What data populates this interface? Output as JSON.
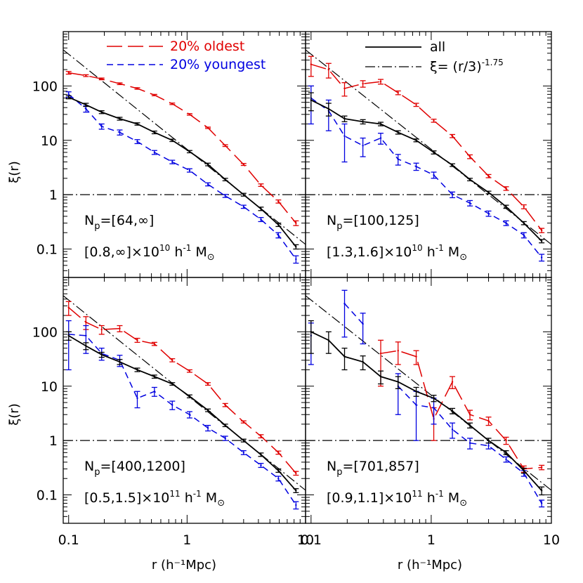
{
  "figure": {
    "ylabel": "ξ(r)",
    "xlabel": "r (h⁻¹Mpc)",
    "x_tick_labels_left": [
      "0.1",
      "1",
      "10"
    ],
    "x_tick_labels_right": [
      "0.1",
      "1",
      "10"
    ],
    "y_tick_labels": [
      "100",
      "10",
      "1",
      "0.1"
    ],
    "legend_left": [
      {
        "label": "20% oldest",
        "color": "#e00000",
        "style": "long-dash"
      },
      {
        "label": "20% youngest",
        "color": "#0000e0",
        "style": "short-dash"
      }
    ],
    "legend_right": [
      {
        "label": "all",
        "color": "#000000",
        "style": "solid"
      },
      {
        "label_prefix": "ξ=  (r/3)",
        "label_exponent": "-1.75",
        "color": "#000000",
        "style": "dash-dot"
      }
    ],
    "colors": {
      "oldest": "#e00000",
      "youngest": "#0000e0",
      "all": "#000000"
    }
  },
  "chart_data": [
    {
      "type": "line",
      "panel": "top-left",
      "annotation_np": "N",
      "annotation_np_sub": "p",
      "annotation_np_val": "=[64,∞]",
      "annotation_mass": "[0.8,∞]×10",
      "annotation_mass_exp": "10",
      "annotation_mass_unit": " h",
      "annotation_mass_unit_exp": "-1",
      "annotation_mass_unit2": " M",
      "annotation_mass_sub": "⊙",
      "xlim": [
        0.09,
        10
      ],
      "ylim": [
        0.03,
        1000
      ],
      "xscale": "log",
      "yscale": "log",
      "series": [
        {
          "key": "oldest",
          "x": [
            0.1,
            0.14,
            0.19,
            0.27,
            0.38,
            0.53,
            0.75,
            1.05,
            1.5,
            2.1,
            3.0,
            4.2,
            5.9,
            8.3
          ],
          "y": [
            175,
            155,
            135,
            110,
            90,
            68,
            47,
            30,
            17,
            8,
            3.6,
            1.5,
            0.75,
            0.3
          ],
          "err": [
            10,
            6,
            5,
            4,
            3,
            2,
            1.5,
            1,
            0.5,
            0.3,
            0.15,
            0.08,
            0.05,
            0.03
          ]
        },
        {
          "key": "youngest",
          "x": [
            0.1,
            0.14,
            0.19,
            0.27,
            0.38,
            0.53,
            0.75,
            1.05,
            1.5,
            2.1,
            3.0,
            4.2,
            5.9,
            8.3
          ],
          "y": [
            70,
            38,
            18,
            14,
            9.5,
            6,
            4,
            2.8,
            1.55,
            0.95,
            0.6,
            0.35,
            0.18,
            0.065
          ],
          "err": [
            8,
            5,
            2,
            1.5,
            0.8,
            0.5,
            0.3,
            0.2,
            0.1,
            0.06,
            0.04,
            0.03,
            0.02,
            0.01
          ]
        },
        {
          "key": "all",
          "x": [
            0.1,
            0.14,
            0.19,
            0.27,
            0.38,
            0.53,
            0.75,
            1.05,
            1.5,
            2.1,
            3.0,
            4.2,
            5.9,
            8.3
          ],
          "y": [
            62,
            45,
            33,
            25,
            20,
            14,
            10,
            6.2,
            3.6,
            1.9,
            1.0,
            0.55,
            0.28,
            0.11
          ],
          "err": [
            4,
            3,
            2,
            1.5,
            1,
            0.8,
            0.5,
            0.3,
            0.2,
            0.1,
            0.06,
            0.04,
            0.02,
            0.01
          ]
        }
      ]
    },
    {
      "type": "line",
      "panel": "top-right",
      "annotation_np": "N",
      "annotation_np_sub": "p",
      "annotation_np_val": "=[100,125]",
      "annotation_mass": "[1.3,1.6]×10",
      "annotation_mass_exp": "10",
      "annotation_mass_unit": " h",
      "annotation_mass_unit_exp": "-1",
      "annotation_mass_unit2": " M",
      "annotation_mass_sub": "⊙",
      "xlim": [
        0.09,
        10
      ],
      "ylim": [
        0.03,
        1000
      ],
      "xscale": "log",
      "yscale": "log",
      "series": [
        {
          "key": "oldest",
          "x": [
            0.1,
            0.14,
            0.19,
            0.27,
            0.38,
            0.53,
            0.75,
            1.05,
            1.5,
            2.1,
            3.0,
            4.2,
            5.9,
            8.3
          ],
          "y": [
            250,
            200,
            90,
            110,
            120,
            75,
            45,
            23,
            12,
            5,
            2.2,
            1.3,
            0.6,
            0.22
          ],
          "err": [
            100,
            60,
            25,
            15,
            12,
            6,
            3,
            1.5,
            0.8,
            0.4,
            0.15,
            0.1,
            0.05,
            0.02
          ]
        },
        {
          "key": "youngest",
          "x": [
            0.1,
            0.14,
            0.19,
            0.27,
            0.38,
            0.53,
            0.75,
            1.05,
            1.5,
            2.1,
            3.0,
            4.2,
            5.9,
            8.3
          ],
          "y": [
            60,
            35,
            12,
            8,
            11,
            4.5,
            3.3,
            2.3,
            1.0,
            0.7,
            0.45,
            0.3,
            0.18,
            0.07
          ],
          "err": [
            40,
            20,
            8,
            3,
            2.5,
            1,
            0.5,
            0.3,
            0.12,
            0.08,
            0.05,
            0.03,
            0.02,
            0.01
          ]
        },
        {
          "key": "all",
          "x": [
            0.1,
            0.14,
            0.19,
            0.27,
            0.38,
            0.53,
            0.75,
            1.05,
            1.5,
            2.1,
            3.0,
            4.2,
            5.9,
            8.3
          ],
          "y": [
            55,
            38,
            25,
            22,
            20,
            14,
            10,
            6,
            3.5,
            1.9,
            1.1,
            0.6,
            0.3,
            0.14
          ],
          "err": [
            20,
            10,
            3,
            2,
            1.5,
            1,
            0.6,
            0.4,
            0.2,
            0.1,
            0.06,
            0.04,
            0.02,
            0.01
          ]
        }
      ]
    },
    {
      "type": "line",
      "panel": "bottom-left",
      "annotation_np": "N",
      "annotation_np_sub": "p",
      "annotation_np_val": "=[400,1200]",
      "annotation_mass": "[0.5,1.5]×10",
      "annotation_mass_exp": "11",
      "annotation_mass_unit": " h",
      "annotation_mass_unit_exp": "-1",
      "annotation_mass_unit2": " M",
      "annotation_mass_sub": "⊙",
      "xlim": [
        0.09,
        10
      ],
      "ylim": [
        0.03,
        1000
      ],
      "xscale": "log",
      "yscale": "log",
      "series": [
        {
          "key": "oldest",
          "x": [
            0.1,
            0.14,
            0.19,
            0.27,
            0.38,
            0.53,
            0.75,
            1.05,
            1.5,
            2.1,
            3.0,
            4.2,
            5.9,
            8.3
          ],
          "y": [
            280,
            150,
            110,
            115,
            70,
            60,
            30,
            19,
            11,
            4.5,
            2.2,
            1.2,
            0.6,
            0.25
          ],
          "err": [
            80,
            40,
            20,
            15,
            6,
            4,
            2,
            1,
            0.6,
            0.3,
            0.1,
            0.08,
            0.04,
            0.02
          ]
        },
        {
          "key": "youngest",
          "x": [
            0.1,
            0.14,
            0.19,
            0.27,
            0.38,
            0.53,
            0.75,
            1.05,
            1.5,
            2.1,
            3.0,
            4.2,
            5.9,
            8.3
          ],
          "y": [
            90,
            85,
            40,
            30,
            6,
            8,
            4.5,
            3,
            1.7,
            1.1,
            0.6,
            0.35,
            0.2,
            0.065
          ],
          "err": [
            70,
            45,
            10,
            7,
            2,
            1.5,
            0.8,
            0.4,
            0.2,
            0.1,
            0.05,
            0.03,
            0.02,
            0.01
          ]
        },
        {
          "key": "all",
          "x": [
            0.1,
            0.14,
            0.19,
            0.27,
            0.38,
            0.53,
            0.75,
            1.05,
            1.5,
            2.1,
            3.0,
            4.2,
            5.9,
            8.3
          ],
          "y": [
            85,
            55,
            38,
            28,
            20,
            15,
            11,
            6.5,
            3.6,
            1.9,
            1.0,
            0.55,
            0.28,
            0.12
          ],
          "err": [
            15,
            8,
            4,
            3,
            1.5,
            1,
            0.6,
            0.4,
            0.2,
            0.1,
            0.06,
            0.04,
            0.02,
            0.01
          ]
        }
      ]
    },
    {
      "type": "line",
      "panel": "bottom-right",
      "annotation_np": "N",
      "annotation_np_sub": "p",
      "annotation_np_val": "=[701,857]",
      "annotation_mass": "[0.9,1.1]×10",
      "annotation_mass_exp": "11",
      "annotation_mass_unit": " h",
      "annotation_mass_unit_exp": "-1",
      "annotation_mass_unit2": " M",
      "annotation_mass_sub": "⊙",
      "xlim": [
        0.09,
        10
      ],
      "ylim": [
        0.03,
        1000
      ],
      "xscale": "log",
      "yscale": "log",
      "series": [
        {
          "key": "oldest",
          "x": [
            0.38,
            0.53,
            0.75,
            1.05,
            1.5,
            2.1,
            3.0,
            4.2,
            5.9,
            8.3
          ],
          "y": [
            40,
            45,
            35,
            2.5,
            12,
            3,
            2.3,
            1.0,
            0.3,
            0.32
          ],
          "err": [
            30,
            20,
            10,
            1.5,
            3,
            0.6,
            0.4,
            0.15,
            0.04,
            0.03
          ]
        },
        {
          "key": "youngest",
          "x": [
            0.1,
            0.14,
            0.19,
            0.27,
            0.38,
            0.53,
            0.75,
            1.05,
            1.5,
            2.1,
            3.0,
            4.2,
            5.9,
            8.3
          ],
          "y": [
            85,
            null,
            330,
            140,
            null,
            10,
            4.5,
            4.0,
            1.6,
            0.9,
            0.8,
            0.45,
            0.25,
            0.07
          ],
          "err": [
            60,
            null,
            250,
            80,
            null,
            7,
            3.5,
            2,
            0.5,
            0.2,
            0.1,
            0.05,
            0.03,
            0.01
          ]
        },
        {
          "key": "all",
          "x": [
            0.1,
            0.14,
            0.19,
            0.27,
            0.38,
            0.53,
            0.75,
            1.05,
            1.5,
            2.1,
            3.0,
            4.2,
            5.9,
            8.3
          ],
          "y": [
            100,
            70,
            35,
            28,
            15,
            12,
            8,
            6,
            3.5,
            1.9,
            1.0,
            0.6,
            0.28,
            0.12
          ],
          "err": [
            60,
            30,
            15,
            8,
            4,
            3,
            1.5,
            0.8,
            0.4,
            0.2,
            0.1,
            0.05,
            0.03,
            0.02
          ]
        }
      ]
    }
  ]
}
